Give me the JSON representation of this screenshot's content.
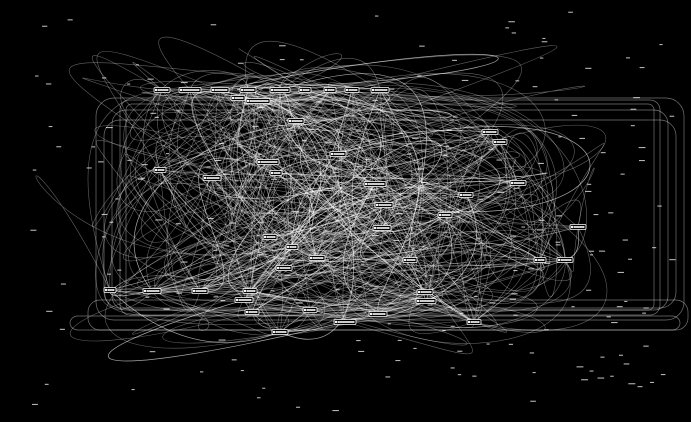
{
  "colors": {
    "background": "#000000",
    "edge": "#ffffff",
    "node_border": "#ffffff"
  },
  "graph": {
    "node_count": 46,
    "edge_count": 400,
    "labels_legible": false
  }
}
